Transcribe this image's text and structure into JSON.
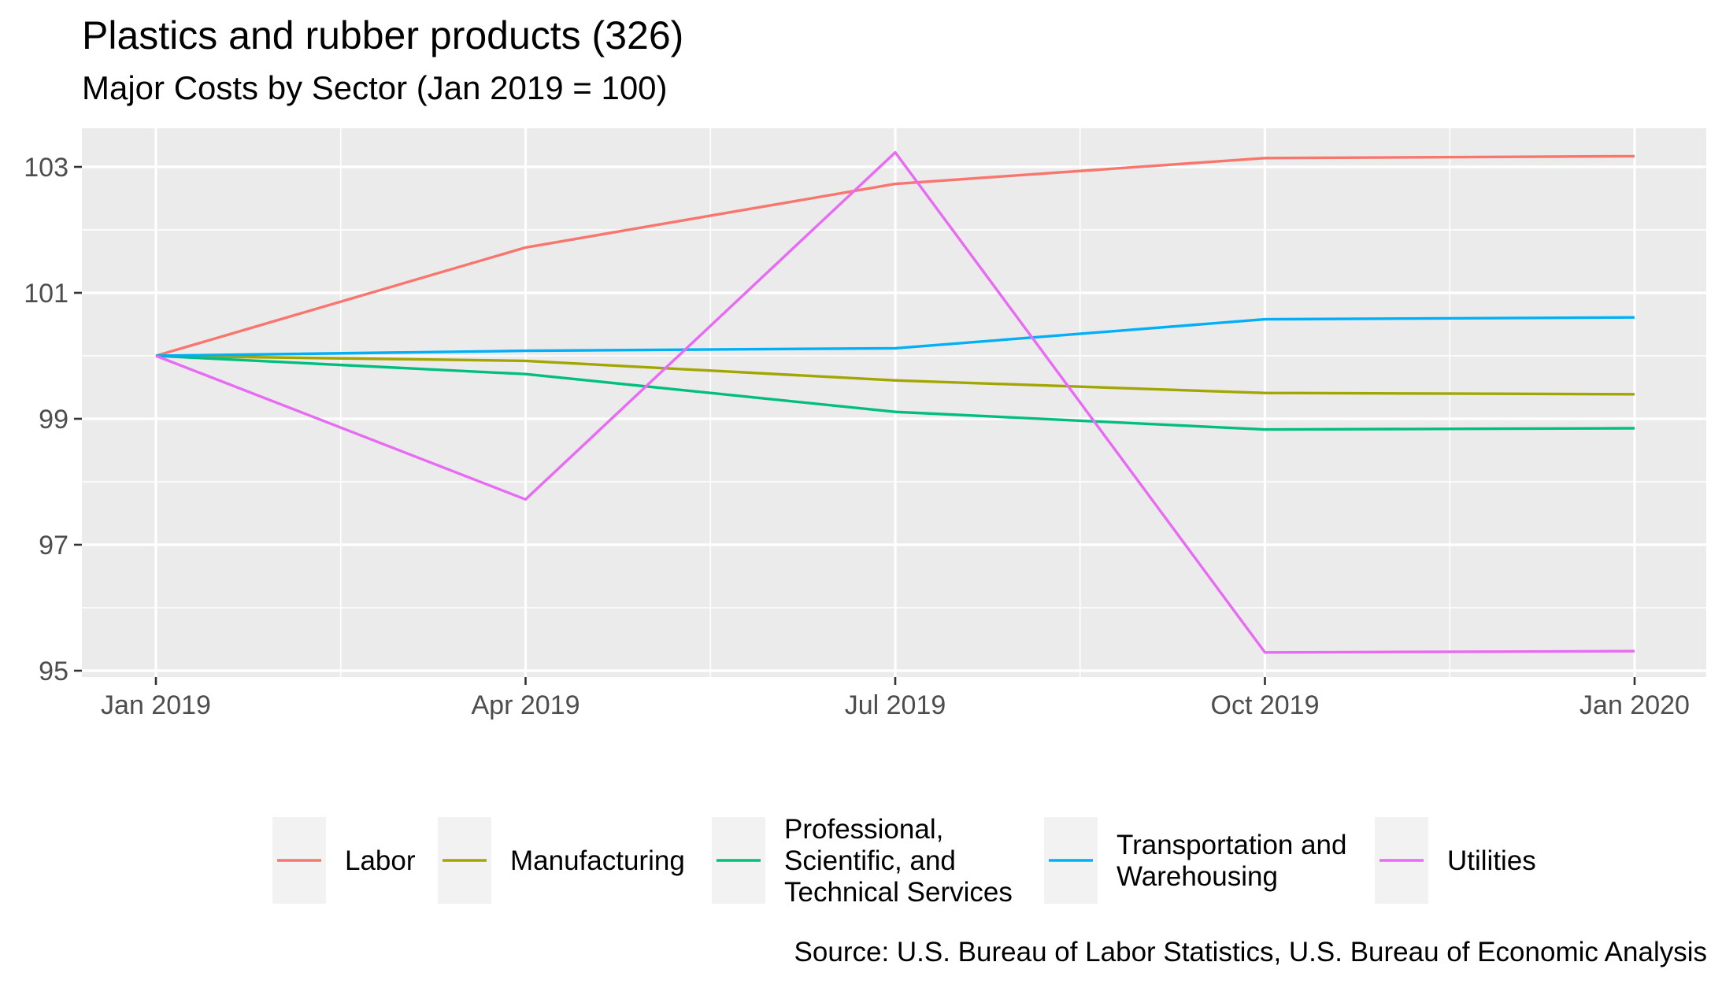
{
  "chart_data": {
    "type": "line",
    "title": "Plastics and rubber products (326)",
    "subtitle": "Major Costs by Sector (Jan 2019 = 100)",
    "caption": "Source: U.S. Bureau of Labor Statistics, U.S. Bureau of Economic Analysis",
    "xlabel": "",
    "ylabel": "",
    "x": [
      "2019-01",
      "2019-04",
      "2019-07",
      "2019-10",
      "2020-01"
    ],
    "x_tick_labels": [
      "Jan 2019",
      "Apr 2019",
      "Jul 2019",
      "Oct 2019",
      "Jan 2020"
    ],
    "y_ticks": [
      95,
      97,
      99,
      101,
      103
    ],
    "ylim": [
      94.9,
      103.6
    ],
    "grid": true,
    "legend_position": "bottom",
    "series": [
      {
        "name": "Labor",
        "color": "#F8766D",
        "values": [
          100.0,
          101.72,
          102.73,
          103.14,
          103.17
        ]
      },
      {
        "name": "Manufacturing",
        "color": "#A3A500",
        "values": [
          100.0,
          99.92,
          99.61,
          99.41,
          99.39
        ]
      },
      {
        "name": "Professional, Scientific, and Technical Services",
        "legend_lines": [
          "Professional,",
          "Scientific, and",
          "Technical Services"
        ],
        "color": "#00BF7D",
        "values": [
          100.0,
          99.71,
          99.11,
          98.83,
          98.85
        ]
      },
      {
        "name": "Transportation and Warehousing",
        "legend_lines": [
          "Transportation and",
          "Warehousing"
        ],
        "color": "#00B0F6",
        "values": [
          100.0,
          100.08,
          100.12,
          100.58,
          100.61
        ]
      },
      {
        "name": "Utilities",
        "color": "#E76BF3",
        "values": [
          100.0,
          97.72,
          103.23,
          95.29,
          95.31
        ]
      }
    ]
  }
}
